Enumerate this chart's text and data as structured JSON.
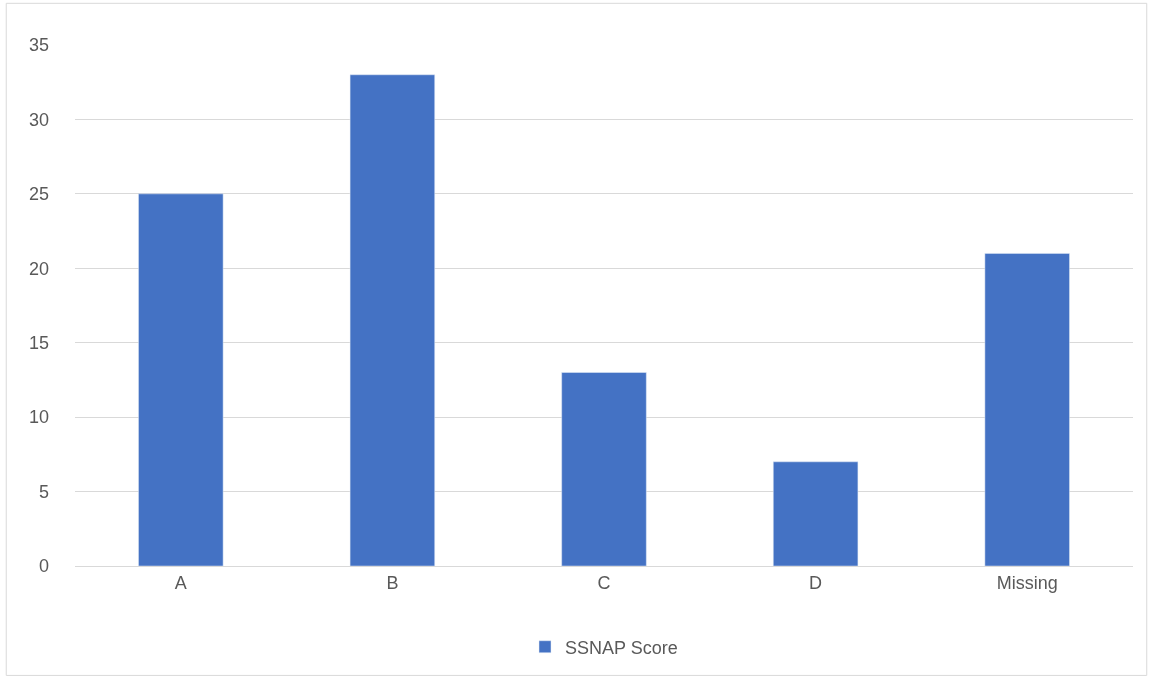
{
  "chart_data": {
    "type": "bar",
    "categories": [
      "A",
      "B",
      "C",
      "D",
      "Missing"
    ],
    "series": [
      {
        "name": "SSNAP Score",
        "color": "#4472c4",
        "values": [
          25,
          33,
          13,
          7,
          21
        ]
      }
    ],
    "ylim": [
      0,
      35
    ],
    "yticks": [
      0,
      5,
      10,
      15,
      20,
      25,
      30,
      35
    ],
    "grid": "y",
    "legend": "bottom"
  }
}
